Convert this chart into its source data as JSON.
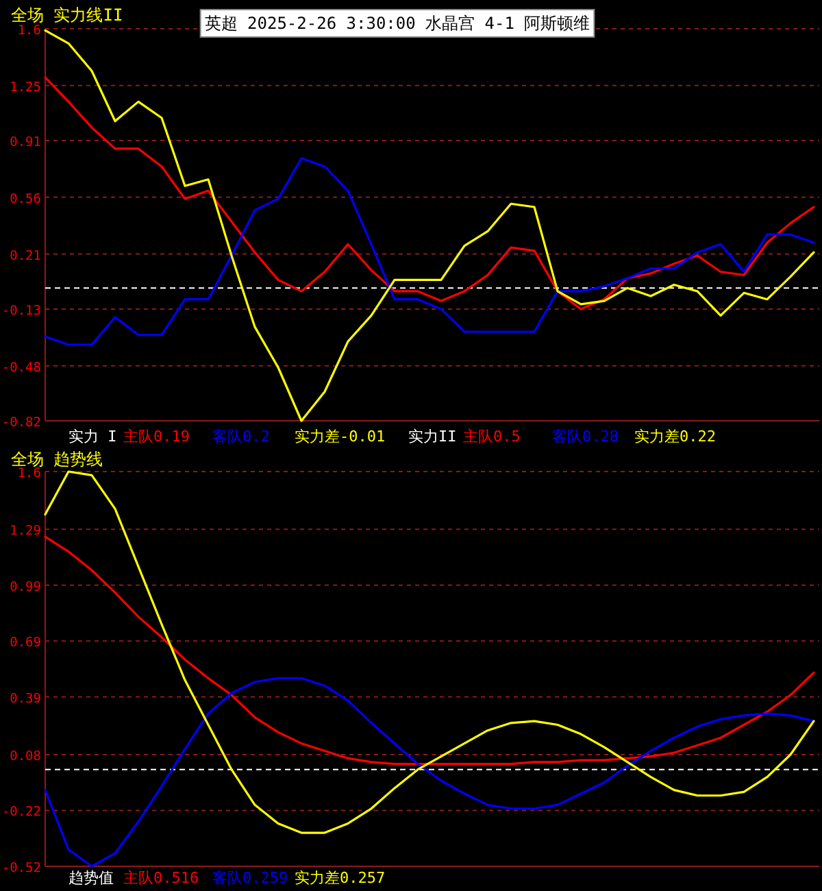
{
  "chart_data": [
    {
      "type": "line",
      "title": "全场 实力线II",
      "subtitle": "英超 2025-2-26 3:30:00 水晶宫 4-1 阿斯顿维",
      "categories": [
        null,
        null,
        null,
        null,
        null,
        null,
        null,
        null,
        null,
        null,
        null,
        null,
        null,
        null,
        null,
        null,
        null,
        null,
        null,
        null,
        null,
        null,
        null,
        null,
        null,
        null,
        null,
        null,
        null,
        null,
        null,
        null,
        null,
        null
      ],
      "series": [
        {
          "color": "#ff0000",
          "values": [
            1.3,
            1.15,
            0.99,
            0.86,
            0.86,
            0.75,
            0.55,
            0.6,
            0.41,
            0.22,
            0.05,
            -0.02,
            0.1,
            0.27,
            0.11,
            -0.02,
            -0.02,
            -0.08,
            -0.02,
            0.08,
            0.25,
            0.23,
            -0.02,
            -0.13,
            -0.07,
            0.06,
            0.09,
            0.15,
            0.2,
            0.1,
            0.08,
            0.28,
            0.4,
            0.5
          ]
        },
        {
          "color": "#0000ff",
          "values": [
            -0.3,
            -0.35,
            -0.35,
            -0.18,
            -0.29,
            -0.29,
            -0.07,
            -0.07,
            0.2,
            0.48,
            0.55,
            0.8,
            0.75,
            0.6,
            0.27,
            -0.07,
            -0.07,
            -0.13,
            -0.27,
            -0.27,
            -0.27,
            -0.27,
            -0.02,
            -0.02,
            0.01,
            0.06,
            0.12,
            0.12,
            0.22,
            0.27,
            0.1,
            0.33,
            0.33,
            0.28
          ]
        },
        {
          "color": "#ffff00",
          "values": [
            1.59,
            1.51,
            1.34,
            1.03,
            1.15,
            1.05,
            0.63,
            0.67,
            0.2,
            -0.24,
            -0.49,
            -0.82,
            -0.64,
            -0.33,
            -0.17,
            0.05,
            0.05,
            0.05,
            0.26,
            0.35,
            0.52,
            0.5,
            -0.02,
            -0.1,
            -0.08,
            0.0,
            -0.05,
            0.02,
            -0.02,
            -0.17,
            -0.03,
            -0.07,
            0.07,
            0.22
          ]
        }
      ],
      "ylim": [
        -0.82,
        1.6
      ],
      "yticks": [
        1.6,
        1.25,
        0.91,
        0.56,
        0.21,
        -0.13,
        -0.48,
        -0.82
      ],
      "grid": "y",
      "tick_labels": "y",
      "line_style": "solid",
      "ref_lines": [
        {
          "axis": "y",
          "value": 0,
          "color": "#ffffff",
          "line_style": "dashed"
        }
      ],
      "annotations": [
        "实力 I",
        "主队0.19",
        "客队0.2",
        "实力差-0.01",
        "实力II",
        "主队0.5",
        "客队0.28",
        "实力差0.22"
      ]
    },
    {
      "type": "line",
      "title": "全场 趋势线",
      "categories": [
        null,
        null,
        null,
        null,
        null,
        null,
        null,
        null,
        null,
        null,
        null,
        null,
        null,
        null,
        null,
        null,
        null,
        null,
        null,
        null,
        null,
        null,
        null,
        null,
        null,
        null,
        null,
        null,
        null,
        null,
        null,
        null,
        null,
        null
      ],
      "series": [
        {
          "color": "#ff0000",
          "values": [
            1.25,
            1.17,
            1.07,
            0.95,
            0.82,
            0.71,
            0.59,
            0.49,
            0.4,
            0.28,
            0.2,
            0.14,
            0.1,
            0.06,
            0.04,
            0.03,
            0.03,
            0.03,
            0.03,
            0.03,
            0.03,
            0.04,
            0.04,
            0.05,
            0.05,
            0.06,
            0.07,
            0.09,
            0.13,
            0.17,
            0.24,
            0.31,
            0.4,
            0.52
          ]
        },
        {
          "color": "#0000ff",
          "values": [
            -0.11,
            -0.43,
            -0.52,
            -0.45,
            -0.28,
            -0.09,
            0.11,
            0.3,
            0.41,
            0.47,
            0.49,
            0.49,
            0.45,
            0.37,
            0.25,
            0.14,
            0.03,
            -0.06,
            -0.13,
            -0.19,
            -0.21,
            -0.21,
            -0.19,
            -0.13,
            -0.07,
            0.02,
            0.1,
            0.17,
            0.23,
            0.27,
            0.29,
            0.3,
            0.29,
            0.26
          ]
        },
        {
          "color": "#ffff00",
          "values": [
            1.37,
            1.6,
            1.58,
            1.4,
            1.09,
            0.78,
            0.48,
            0.24,
            0.0,
            -0.19,
            -0.29,
            -0.34,
            -0.34,
            -0.29,
            -0.21,
            -0.1,
            0.0,
            0.07,
            0.14,
            0.21,
            0.25,
            0.26,
            0.24,
            0.19,
            0.12,
            0.04,
            -0.04,
            -0.11,
            -0.14,
            -0.14,
            -0.12,
            -0.04,
            0.08,
            0.26
          ]
        }
      ],
      "ylim": [
        -0.52,
        1.6
      ],
      "yticks": [
        1.6,
        1.29,
        0.99,
        0.69,
        0.39,
        0.08,
        -0.22,
        -0.52
      ],
      "grid": "y",
      "tick_labels": "y",
      "line_style": "solid",
      "ref_lines": [
        {
          "axis": "y",
          "value": 0,
          "color": "#ffffff",
          "line_style": "dashed"
        }
      ],
      "annotations": [
        "趋势值",
        "主队0.516",
        "客队0.259",
        "实力差0.257"
      ]
    }
  ]
}
